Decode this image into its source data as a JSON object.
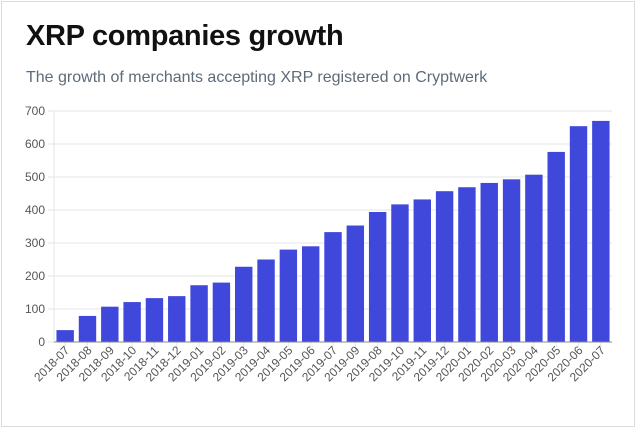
{
  "header": {
    "title": "XRP companies growth",
    "subtitle": "The growth of merchants accepting XRP registered on Cryptwerk"
  },
  "colors": {
    "bar": "#3f48db",
    "grid": "#e6e6e6",
    "axis": "#888888"
  },
  "chart_data": {
    "type": "bar",
    "title": "XRP companies growth",
    "subtitle": "The growth of merchants accepting XRP registered on Cryptwerk",
    "xlabel": "",
    "ylabel": "",
    "ylim": [
      0,
      700
    ],
    "yticks": [
      0,
      100,
      200,
      300,
      400,
      500,
      600,
      700
    ],
    "grid": true,
    "categories": [
      "2018-07",
      "2018-08",
      "2018-09",
      "2018-10",
      "2018-11",
      "2018-12",
      "2019-01",
      "2019-02",
      "2019-03",
      "2019-04",
      "2019-05",
      "2019-06",
      "2019-07",
      "2019-09",
      "2019-08",
      "2019-10",
      "2019-11",
      "2019-12",
      "2020-01",
      "2020-02",
      "2020-03",
      "2020-04",
      "2020-05",
      "2020-06",
      "2020-07"
    ],
    "values": [
      36,
      79,
      107,
      121,
      133,
      139,
      172,
      180,
      228,
      250,
      280,
      290,
      333,
      353,
      394,
      417,
      432,
      457,
      469,
      482,
      493,
      507,
      576,
      654,
      670
    ]
  }
}
